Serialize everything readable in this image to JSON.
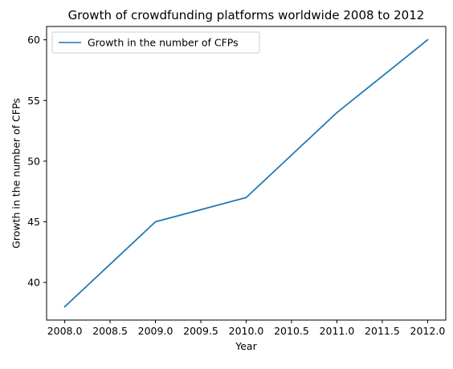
{
  "chart_data": {
    "type": "line",
    "title": "Growth of crowdfunding platforms worldwide 2008 to 2012",
    "xlabel": "Year",
    "ylabel": "Growth in the number of CFPs",
    "x": [
      2008,
      2009,
      2010,
      2011,
      2012
    ],
    "series": [
      {
        "name": "Growth in the number of CFPs",
        "values": [
          38,
          45,
          47,
          54,
          60
        ],
        "color": "#1f77b4"
      }
    ],
    "xlim": [
      2007.8,
      2012.2
    ],
    "ylim": [
      36.9,
      61.1
    ],
    "xticks": [
      2008.0,
      2008.5,
      2009.0,
      2009.5,
      2010.0,
      2010.5,
      2011.0,
      2011.5,
      2012.0
    ],
    "xtick_labels": [
      "2008.0",
      "2008.5",
      "2009.0",
      "2009.5",
      "2010.0",
      "2010.5",
      "2011.0",
      "2011.5",
      "2012.0"
    ],
    "yticks": [
      40,
      45,
      50,
      55,
      60
    ],
    "ytick_labels": [
      "40",
      "45",
      "50",
      "55",
      "60"
    ],
    "grid": false,
    "legend_position": "upper-left"
  }
}
